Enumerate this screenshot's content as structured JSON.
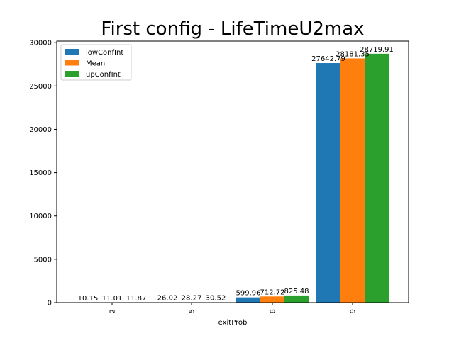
{
  "chart_data": {
    "type": "bar",
    "title": "First config - LifeTimeU2max",
    "xlabel": "exitProb",
    "ylabel": "",
    "categories": [
      "2",
      "5",
      "8",
      "9"
    ],
    "series": [
      {
        "name": "lowConfInt",
        "color": "#1f77b4",
        "values": [
          10.15,
          26.02,
          599.96,
          27642.79
        ]
      },
      {
        "name": "Mean",
        "color": "#ff7f0e",
        "values": [
          11.01,
          28.27,
          712.72,
          28181.35
        ]
      },
      {
        "name": "upConfInt",
        "color": "#2ca02c",
        "values": [
          11.87,
          30.52,
          825.48,
          28719.91
        ]
      }
    ],
    "data_labels": [
      [
        "10.15",
        "26.02",
        "599.96",
        "27642.79"
      ],
      [
        "11.01",
        "28.27",
        "712.72",
        "28181.35"
      ],
      [
        "11.87",
        "30.52",
        "825.48",
        "28719.91"
      ]
    ],
    "yticks": [
      0,
      5000,
      10000,
      15000,
      20000,
      25000,
      30000
    ],
    "ylim": [
      0,
      30180
    ],
    "legend_position": "top-left",
    "grid": false
  }
}
